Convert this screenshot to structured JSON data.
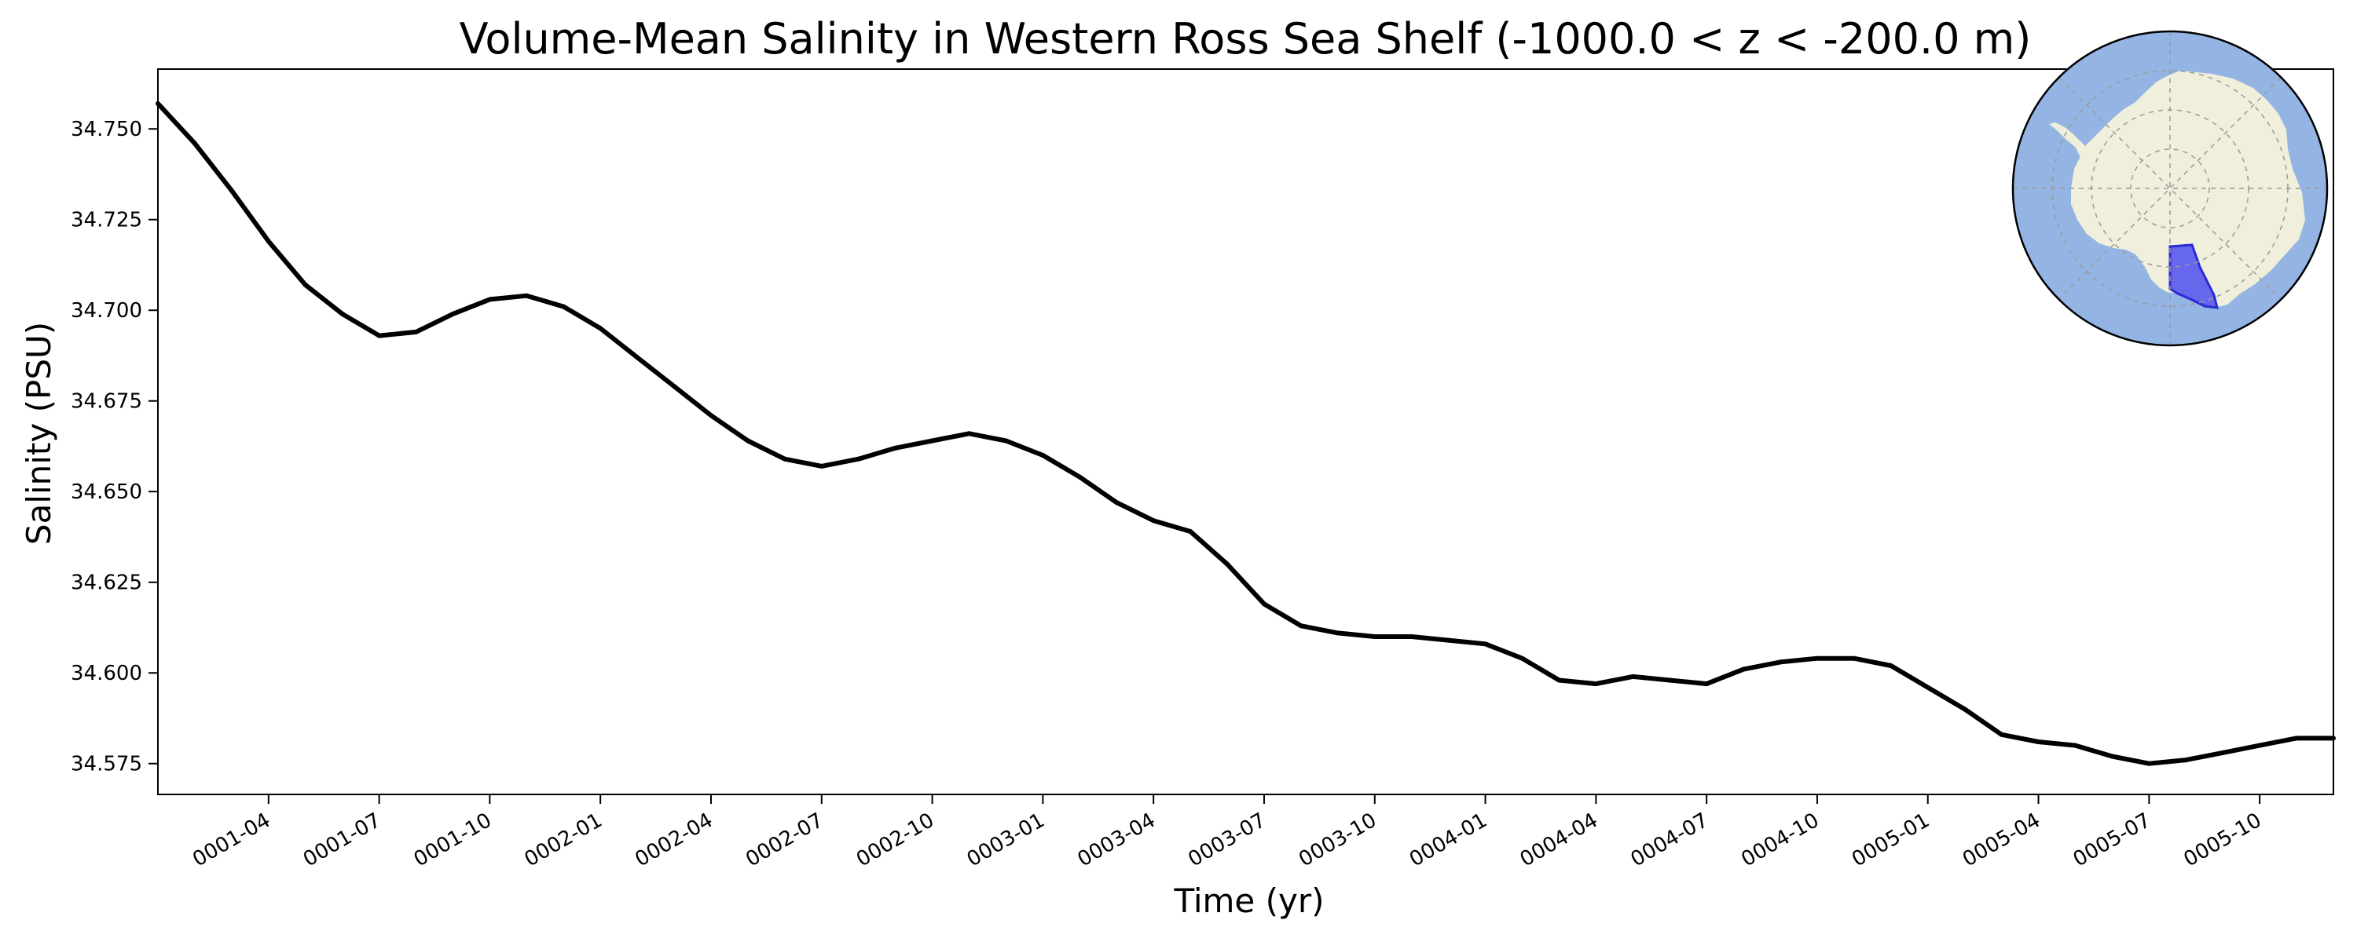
{
  "chart_data": {
    "type": "line",
    "title": "Volume-Mean Salinity in Western Ross Sea Shelf (-1000.0 < z < -200.0 m)",
    "xlabel": "Time (yr)",
    "ylabel": "Salinity (PSU)",
    "x_ticks": [
      "0001-04",
      "0001-07",
      "0001-10",
      "0002-01",
      "0002-04",
      "0002-07",
      "0002-10",
      "0003-01",
      "0003-04",
      "0003-07",
      "0003-10",
      "0004-01",
      "0004-04",
      "0004-07",
      "0004-10",
      "0005-01",
      "0005-04",
      "0005-07",
      "0005-10"
    ],
    "y_ticks": [
      "34.575",
      "34.600",
      "34.625",
      "34.650",
      "34.675",
      "34.700",
      "34.725",
      "34.750"
    ],
    "xlim_months": [
      0.0,
      59.0
    ],
    "ylim": [
      34.5665,
      34.7665
    ],
    "grid": false,
    "series": [
      {
        "name": "salinity",
        "color": "#000000",
        "x_months": [
          0.0,
          1.0,
          2.0,
          3.0,
          4.0,
          5.0,
          6.0,
          7.0,
          8.0,
          9.0,
          10.0,
          11.0,
          12.0,
          13.0,
          14.0,
          15.0,
          16.0,
          17.0,
          18.0,
          19.0,
          20.0,
          21.0,
          22.0,
          23.0,
          24.0,
          25.0,
          26.0,
          27.0,
          28.0,
          29.0,
          30.0,
          31.0,
          32.0,
          33.0,
          34.0,
          35.0,
          36.0,
          37.0,
          38.0,
          39.0,
          40.0,
          41.0,
          42.0,
          43.0,
          44.0,
          45.0,
          46.0,
          47.0,
          48.0,
          49.0,
          50.0,
          51.0,
          52.0,
          53.0,
          54.0,
          55.0,
          56.0,
          57.0,
          58.0,
          59.0
        ],
        "values": [
          34.757,
          34.746,
          34.733,
          34.719,
          34.707,
          34.699,
          34.693,
          34.694,
          34.699,
          34.703,
          34.704,
          34.701,
          34.695,
          34.687,
          34.679,
          34.671,
          34.664,
          34.659,
          34.657,
          34.659,
          34.662,
          34.664,
          34.666,
          34.664,
          34.66,
          34.654,
          34.647,
          34.642,
          34.639,
          34.63,
          34.619,
          34.613,
          34.611,
          34.61,
          34.61,
          34.609,
          34.608,
          34.604,
          34.598,
          34.597,
          34.599,
          34.598,
          34.597,
          34.601,
          34.603,
          34.604,
          34.604,
          34.602,
          34.596,
          34.59,
          34.583,
          34.581,
          34.58,
          34.577,
          34.575,
          34.576,
          34.578,
          34.58,
          34.582,
          34.582
        ]
      }
    ],
    "inset_map": {
      "description": "polar",
      "ocean_color": "#94b5e3",
      "land_color": "#efefdc",
      "region_color": "#3a3af0"
    }
  }
}
